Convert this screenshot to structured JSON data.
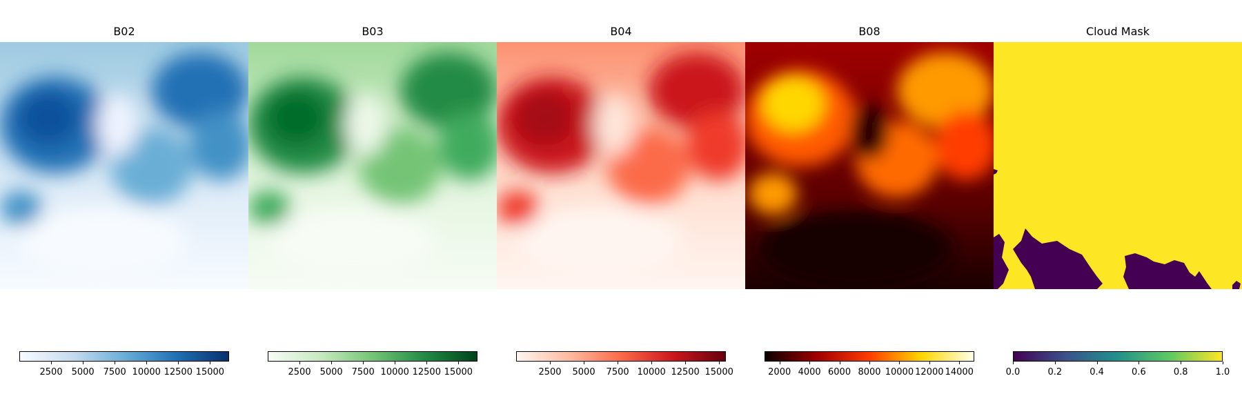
{
  "figure": {
    "panels": [
      {
        "id": "b02",
        "title": "B02",
        "palette": [
          "#f7fbff",
          "#c6dbef",
          "#6baed6",
          "#2171b5",
          "#08306b"
        ],
        "colorbar_range": [
          0,
          16500
        ],
        "colorbar_ticks": [
          "2500",
          "5000",
          "7500",
          "10000",
          "12500",
          "15000"
        ]
      },
      {
        "id": "b03",
        "title": "B03",
        "palette": [
          "#f7fcf5",
          "#c7e9c0",
          "#74c476",
          "#238b45",
          "#00441b"
        ],
        "colorbar_range": [
          0,
          16500
        ],
        "colorbar_ticks": [
          "2500",
          "5000",
          "7500",
          "10000",
          "12500",
          "15000"
        ]
      },
      {
        "id": "b04",
        "title": "B04",
        "palette": [
          "#fff5f0",
          "#fcbba1",
          "#fb6a4a",
          "#cb181d",
          "#67000d"
        ],
        "colorbar_range": [
          0,
          15500
        ],
        "colorbar_ticks": [
          "2500",
          "5000",
          "7500",
          "10000",
          "12500",
          "15000"
        ]
      },
      {
        "id": "b08",
        "title": "B08",
        "palette": [
          "#0b0000",
          "#a00000",
          "#ff3d00",
          "#ffd700",
          "#ffffe8"
        ],
        "colorbar_range": [
          1000,
          15000
        ],
        "colorbar_ticks": [
          "2000",
          "4000",
          "6000",
          "8000",
          "10000",
          "12000",
          "14000"
        ]
      },
      {
        "id": "cloudmask",
        "title": "Cloud Mask",
        "palette": [
          "#440154",
          "#3b528b",
          "#21918c",
          "#5ec962",
          "#fde725"
        ],
        "colorbar_range": [
          0,
          1
        ],
        "colorbar_ticks": [
          "0.0",
          "0.2",
          "0.4",
          "0.6",
          "0.8",
          "1.0"
        ]
      }
    ]
  }
}
